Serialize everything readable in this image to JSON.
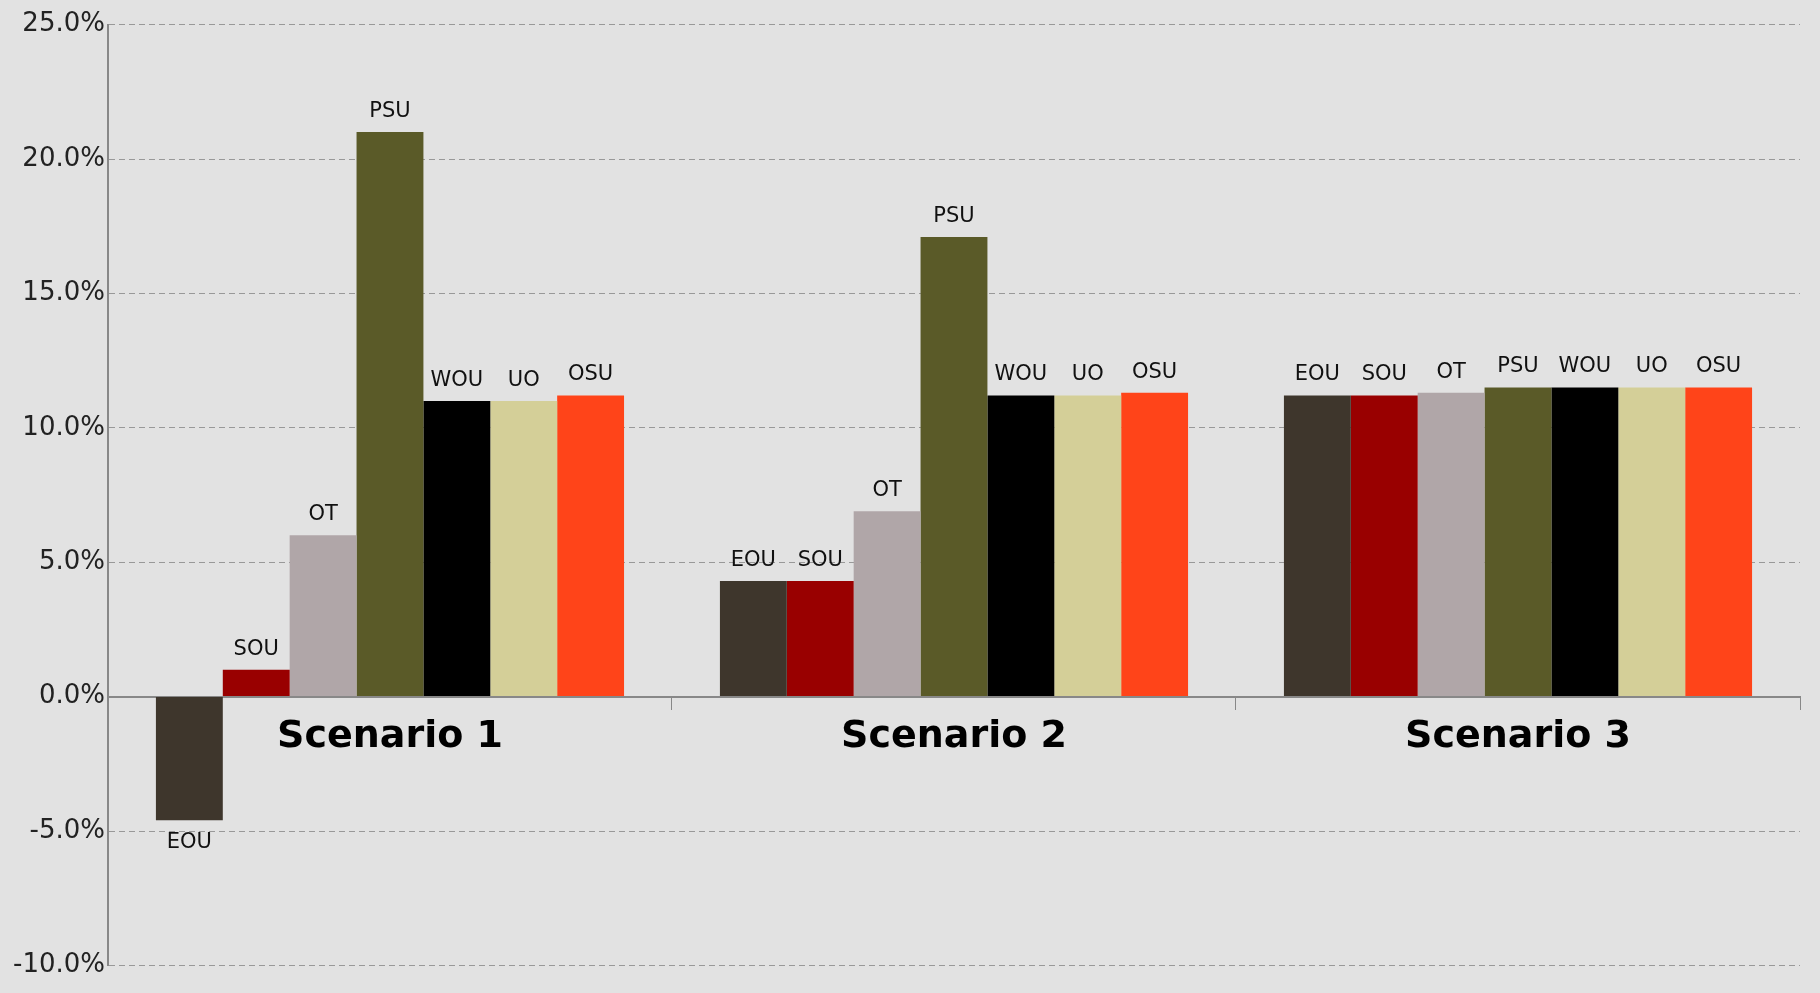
{
  "chart_data": {
    "type": "bar",
    "categories": [
      "Scenario 1",
      "Scenario 2",
      "Scenario 3"
    ],
    "series": [
      {
        "name": "EOU",
        "color": "#3e362c",
        "values": [
          -4.6,
          4.3,
          11.2
        ]
      },
      {
        "name": "SOU",
        "color": "#990000",
        "values": [
          1.0,
          4.3,
          11.2
        ]
      },
      {
        "name": "OT",
        "color": "#b0a6a8",
        "values": [
          6.0,
          6.9,
          11.3
        ]
      },
      {
        "name": "PSU",
        "color": "#5a5a28",
        "values": [
          21.0,
          17.1,
          11.5
        ]
      },
      {
        "name": "WOU",
        "color": "#000000",
        "values": [
          11.0,
          11.2,
          11.5
        ]
      },
      {
        "name": "UO",
        "color": "#d4cf98",
        "values": [
          11.0,
          11.2,
          11.5
        ]
      },
      {
        "name": "OSU",
        "color": "#ff4419",
        "values": [
          11.2,
          11.3,
          11.5
        ]
      }
    ],
    "ylim": [
      -10,
      25
    ],
    "yticks": [
      {
        "value": -10,
        "label": "-10.0%"
      },
      {
        "value": -5,
        "label": "-5.0%"
      },
      {
        "value": 0,
        "label": "0.0%"
      },
      {
        "value": 5,
        "label": "5.0%"
      },
      {
        "value": 10,
        "label": "10.0%"
      },
      {
        "value": 15,
        "label": "15.0%"
      },
      {
        "value": 20,
        "label": "20.0%"
      },
      {
        "value": 25,
        "label": "25.0%"
      }
    ],
    "grid": "y",
    "legend": false
  }
}
